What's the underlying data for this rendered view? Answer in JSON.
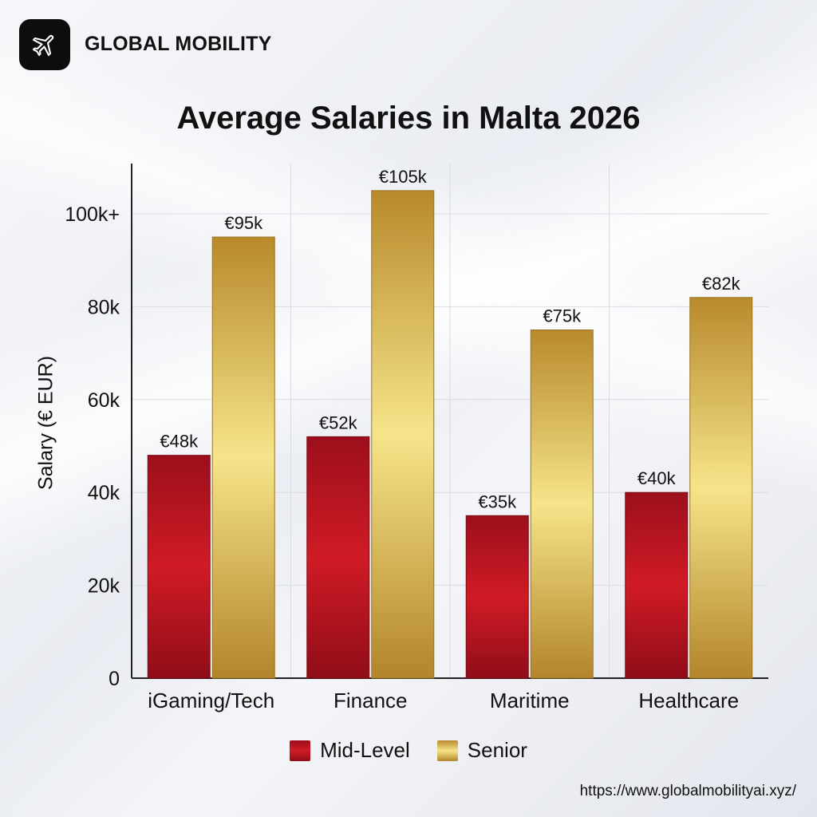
{
  "brand": {
    "name": "GLOBAL MOBILITY",
    "icon": "airplane-icon"
  },
  "url": "https://www.globalmobilityai.xyz/",
  "colors": {
    "mid_level": "#b4141f",
    "senior": "#d4aa45"
  },
  "chart_data": {
    "type": "bar",
    "title": "Average Salaries in Malta 2026",
    "xlabel": "",
    "ylabel": "Salary (€ EUR)",
    "ylim": [
      0,
      110000
    ],
    "yticks": [
      {
        "value": 0,
        "label": "0"
      },
      {
        "value": 20000,
        "label": "20k"
      },
      {
        "value": 40000,
        "label": "40k"
      },
      {
        "value": 60000,
        "label": "60k"
      },
      {
        "value": 80000,
        "label": "80k"
      },
      {
        "value": 100000,
        "label": "100k+"
      }
    ],
    "categories": [
      "iGaming/Tech",
      "Finance",
      "Maritime",
      "Healthcare"
    ],
    "series": [
      {
        "name": "Mid-Level",
        "values": [
          48000,
          52000,
          35000,
          40000
        ],
        "labels": [
          "€48k",
          "€52k",
          "€35k",
          "€40k"
        ]
      },
      {
        "name": "Senior",
        "values": [
          95000,
          105000,
          75000,
          82000
        ],
        "labels": [
          "€95k",
          "€105k",
          "€75k",
          "€82k"
        ]
      }
    ],
    "grid": true,
    "legend": "bottom"
  }
}
